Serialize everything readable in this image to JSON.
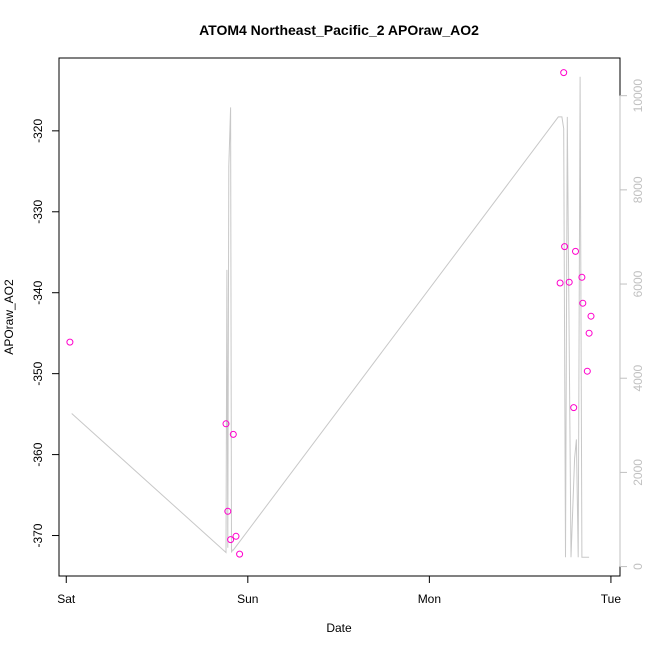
{
  "chart_data": {
    "type": "scatter",
    "title": "ATOM4 Northeast_Pacific_2 APOraw_AO2",
    "xlabel": "Date",
    "ylabel": "APOraw_AO2",
    "x_ticks": [
      "Sat",
      "Sun",
      "Mon",
      "Tue"
    ],
    "x_tick_days": [
      0,
      1,
      2,
      3
    ],
    "xlim_days": [
      -0.04,
      3.05
    ],
    "ylim": [
      -375,
      -311
    ],
    "y_ticks": [
      -370,
      -360,
      -350,
      -340,
      -330,
      -320
    ],
    "y2lim": [
      -200,
      10800
    ],
    "y2_ticks": [
      0,
      2000,
      4000,
      6000,
      8000,
      10000
    ],
    "series": [
      {
        "type": "scatter",
        "color": "#ff00cc",
        "axis": "left",
        "x_days": [
          0.02,
          0.88,
          0.89,
          0.905,
          0.92,
          0.935,
          0.955,
          2.72,
          2.74,
          2.745,
          2.77,
          2.795,
          2.805,
          2.84,
          2.845,
          2.87,
          2.88,
          2.89
        ],
        "values": [
          -346.1,
          -356.2,
          -367.0,
          -370.5,
          -357.5,
          -370.1,
          -372.3,
          -338.8,
          -312.8,
          -334.3,
          -338.7,
          -354.2,
          -334.9,
          -338.1,
          -341.3,
          -349.7,
          -345.0,
          -342.9
        ]
      },
      {
        "type": "line",
        "color": "#c8c8c8",
        "axis": "right",
        "x_days": [
          0.03,
          0.88,
          0.885,
          0.89,
          0.895,
          0.905,
          0.91,
          0.915,
          0.92,
          0.93,
          2.71,
          2.73,
          2.74,
          2.75,
          2.76,
          2.78,
          2.8,
          2.81,
          2.82,
          2.83,
          2.84,
          2.86,
          2.87,
          2.88
        ],
        "values": [
          3250,
          300,
          6300,
          400,
          8500,
          9750,
          300,
          350,
          350,
          400,
          9550,
          9550,
          9300,
          200,
          9550,
          200,
          2300,
          2700,
          200,
          10400,
          200,
          200,
          200,
          200
        ]
      }
    ]
  }
}
